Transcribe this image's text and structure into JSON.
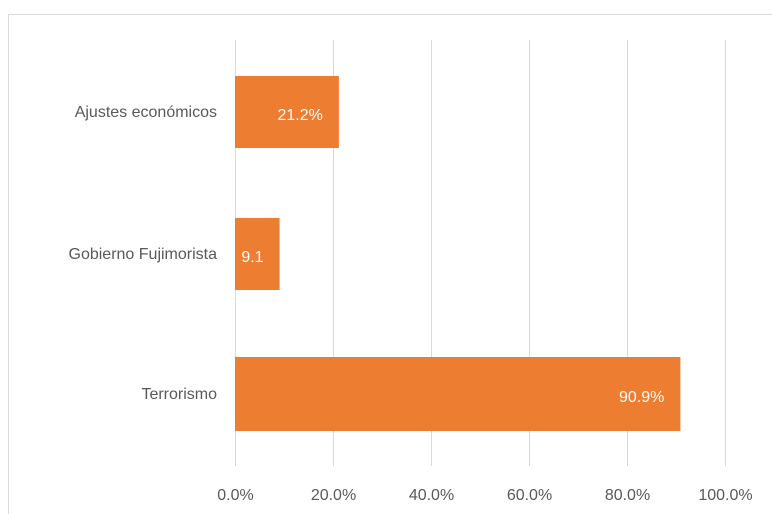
{
  "chart_data": {
    "type": "bar",
    "orientation": "horizontal",
    "categories": [
      "Ajustes económicos",
      "Gobierno Fujimorista",
      "Terrorismo"
    ],
    "values": [
      21.2,
      9.1,
      90.9
    ],
    "data_labels": [
      "21.2%",
      "9.1",
      "90.9%"
    ],
    "x_ticks": [
      "0.0%",
      "20.0%",
      "40.0%",
      "60.0%",
      "80.0%",
      "100.0%"
    ],
    "xlim": [
      0,
      100
    ],
    "grid": "vertical",
    "bar_color": "#ED7D31",
    "grid_color": "#D9D9D9",
    "title": "",
    "xlabel": "",
    "ylabel": ""
  }
}
